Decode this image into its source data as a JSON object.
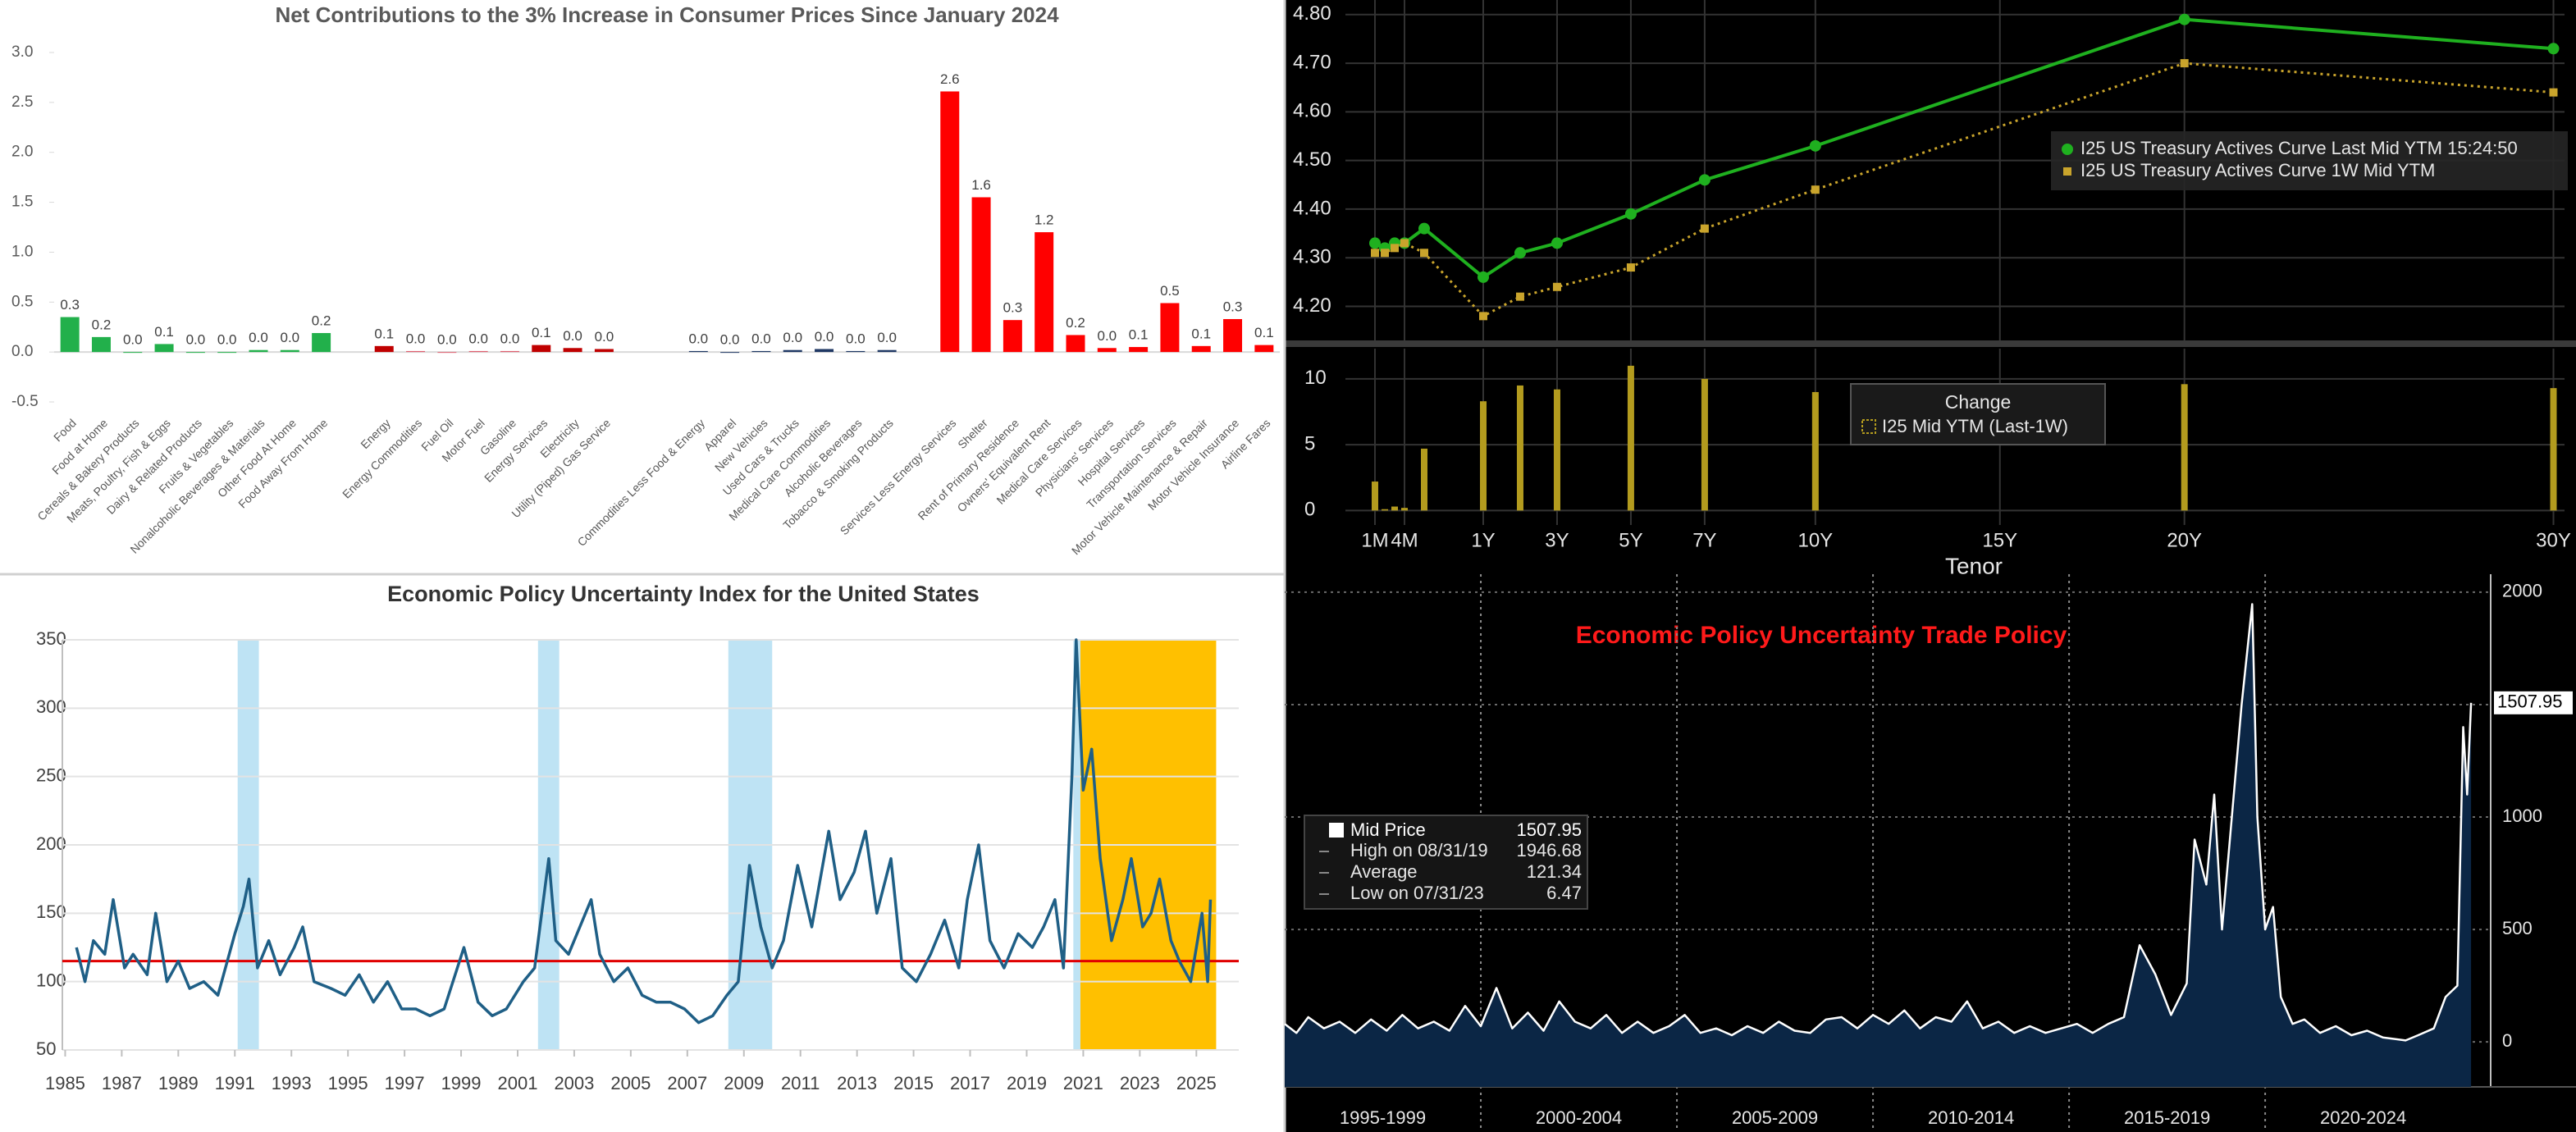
{
  "chart_data": [
    {
      "type": "bar",
      "title": "Net Contributions to the 3% Increase in Consumer Prices Since January 2024",
      "categories": [
        "Food",
        "Food at Home",
        "Cereals & Bakery Products",
        "Meats, Poultry, Fish & Eggs",
        "Dairy & Related Products",
        "Fruits & Vegetables",
        "Nonalcoholic Beverages & Materials",
        "Other Food At Home",
        "Food Away From Home",
        null,
        "Energy",
        "Energy Commodities",
        "Fuel Oil",
        "Motor Fuel",
        "Gasoline",
        "Energy Services",
        "Electricity",
        "Utility (Piped) Gas Service",
        null,
        null,
        "Commodities Less Food & Energy",
        "Apparel",
        "New Vehicles",
        "Used Cars & Trucks",
        "Medical Care Commodities",
        "Alcoholic Beverages",
        "Tobacco & Smoking Products",
        null,
        "Services Less Energy Services",
        "Shelter",
        "Rent of Primary Residence",
        "Owners' Equivalent Rent",
        "Medical Care Services",
        "Physicians' Services",
        "Hospital Services",
        "Transportation Services",
        "Motor Vehicle Maintenance & Repair",
        "Motor Vehicle Insurance",
        "Airline Fares"
      ],
      "values": [
        0.35,
        0.15,
        0.0,
        0.08,
        0.0,
        0.0,
        0.02,
        0.02,
        0.19,
        null,
        0.06,
        0.01,
        0.0,
        0.01,
        0.01,
        0.07,
        0.04,
        0.03,
        null,
        null,
        0.01,
        0.0,
        0.01,
        0.02,
        0.03,
        0.01,
        0.02,
        null,
        2.61,
        1.55,
        0.32,
        1.2,
        0.17,
        0.04,
        0.05,
        0.49,
        0.06,
        0.33,
        0.07
      ],
      "value_labels": [
        "0.3",
        "0.2",
        "0.0",
        "0.1",
        "0.0",
        "0.0",
        "0.0",
        "0.0",
        "0.2",
        null,
        "0.1",
        "0.0",
        "0.0",
        "0.0",
        "0.0",
        "0.1",
        "0.0",
        "0.0",
        null,
        null,
        "0.0",
        "0.0",
        "0.0",
        "0.0",
        "0.0",
        "0.0",
        "0.0",
        null,
        "2.6",
        "1.6",
        "0.3",
        "1.2",
        "0.2",
        "0.0",
        "0.1",
        "0.5",
        "0.1",
        "0.3",
        "0.1"
      ],
      "colors": [
        "#22b04b",
        "#22b04b",
        "#22b04b",
        "#22b04b",
        "#22b04b",
        "#22b04b",
        "#22b04b",
        "#22b04b",
        "#22b04b",
        null,
        "#c00000",
        "#e06070",
        "#e06070",
        "#e06070",
        "#e06070",
        "#c00000",
        "#c00000",
        "#c00000",
        null,
        null,
        "#1f3864",
        "#1f3864",
        "#1f3864",
        "#1f3864",
        "#1f3864",
        "#1f3864",
        "#1f3864",
        null,
        "#ff0000",
        "#ff0000",
        "#ff0000",
        "#ff0000",
        "#ff0000",
        "#ff0000",
        "#ff0000",
        "#ff0000",
        "#ff0000",
        "#ff0000",
        "#ff0000"
      ],
      "ylim": [
        -0.5,
        3.0
      ],
      "yticks": [
        -0.5,
        {
          "value": 0,
          "label": "0.0"
        },
        0.5,
        {
          "value": 1,
          "label": "1.0"
        },
        1.5,
        {
          "value": 2,
          "label": "2.0"
        },
        2.5,
        {
          "value": 3,
          "label": "3.0"
        }
      ]
    },
    {
      "type": "line",
      "x": [
        0.0833,
        0.1667,
        0.25,
        0.3333,
        0.5,
        1,
        2,
        3,
        5,
        7,
        10,
        20,
        30
      ],
      "series": [
        {
          "name": "I25 US Treasury Actives Curve Last Mid YTM 15:24:50",
          "color": "#1fb01f",
          "line_style": "solid",
          "marker": "circle",
          "values": [
            4.33,
            4.32,
            4.33,
            4.33,
            4.36,
            4.26,
            4.31,
            4.33,
            4.39,
            4.46,
            4.53,
            4.79,
            4.73
          ]
        },
        {
          "name": "I25 US Treasury Actives Curve 1W Mid YTM",
          "color": "#c9a42c",
          "line_style": "dotted",
          "marker": "square",
          "values": [
            4.31,
            4.31,
            4.32,
            4.33,
            4.31,
            4.18,
            4.22,
            4.24,
            4.28,
            4.36,
            4.44,
            4.7,
            4.64
          ]
        }
      ],
      "xlim": [
        0,
        30.3
      ],
      "ylim": [
        4.13,
        4.83
      ],
      "yticks": [
        {
          "value": 4.2,
          "label": "4.20"
        },
        {
          "value": 4.3,
          "label": "4.30"
        },
        {
          "value": 4.4,
          "label": "4.40"
        },
        {
          "value": 4.5,
          "label": "4.50"
        },
        {
          "value": 4.6,
          "label": "4.60"
        },
        {
          "value": 4.7,
          "label": "4.70"
        },
        {
          "value": 4.8,
          "label": "4.80"
        }
      ],
      "grid": true
    },
    {
      "type": "bar",
      "legend_title": "Change",
      "x": [
        0.0833,
        0.1667,
        0.25,
        0.3333,
        0.5,
        1,
        2,
        3,
        5,
        7,
        10,
        20,
        30
      ],
      "series": [
        {
          "name": "I25 Mid YTM (Last-1W)",
          "color": "#b39b1e",
          "values": [
            2.2,
            0.1,
            0.3,
            0.2,
            4.7,
            8.3,
            9.5,
            9.2,
            11,
            10,
            9,
            9.6,
            9.3
          ]
        }
      ],
      "xlim": [
        0,
        30.3
      ],
      "xticks": [
        {
          "value": 0.0833,
          "label": "1M"
        },
        {
          "value": 0.3333,
          "label": "4M"
        },
        {
          "value": 1,
          "label": "1Y"
        },
        {
          "value": 3,
          "label": "3Y"
        },
        {
          "value": 5,
          "label": "5Y"
        },
        {
          "value": 7,
          "label": "7Y"
        },
        {
          "value": 10,
          "label": "10Y"
        },
        {
          "value": 15,
          "label": "15Y"
        },
        {
          "value": 20,
          "label": "20Y"
        },
        {
          "value": 30,
          "label": "30Y"
        }
      ],
      "xlabel": "Tenor",
      "ylim": [
        -1.1,
        12.3
      ],
      "yticks": [
        0,
        5,
        10
      ],
      "grid": true
    },
    {
      "type": "line",
      "title": "Economic Policy Uncertainty Index for the United States",
      "x": [
        1985.4,
        1985.7,
        1986.0,
        1986.4,
        1986.7,
        1987.1,
        1987.4,
        1987.9,
        1988.2,
        1988.6,
        1989.0,
        1989.4,
        1989.9,
        1990.4,
        1991.0,
        1991.3,
        1991.5,
        1991.8,
        1992.2,
        1992.6,
        1993.1,
        1993.4,
        1993.8,
        1994.4,
        1994.9,
        1995.4,
        1995.9,
        1996.4,
        1996.9,
        1997.4,
        1997.9,
        1998.4,
        1999.1,
        1999.6,
        2000.1,
        2000.6,
        2001.2,
        2001.6,
        2002.1,
        2002.35,
        2002.8,
        2003.2,
        2003.6,
        2003.9,
        2004.4,
        2004.9,
        2005.4,
        2005.9,
        2006.4,
        2006.9,
        2007.4,
        2007.9,
        2008.4,
        2008.8,
        2009.2,
        2009.6,
        2010.0,
        2010.4,
        2010.9,
        2011.4,
        2012.0,
        2012.4,
        2012.9,
        2013.3,
        2013.7,
        2014.2,
        2014.6,
        2015.1,
        2015.6,
        2016.1,
        2016.6,
        2016.9,
        2017.3,
        2017.7,
        2018.2,
        2018.7,
        2019.2,
        2019.6,
        2020.0,
        2020.3,
        2020.6,
        2020.75,
        2021.0,
        2021.3,
        2021.6,
        2022.0,
        2022.4,
        2022.7,
        2023.1,
        2023.4,
        2023.7,
        2024.1,
        2024.4,
        2024.8,
        2025.2,
        2025.4,
        2025.5
      ],
      "series": [
        {
          "color": "#1f5f86",
          "values": [
            125,
            100,
            130,
            120,
            160,
            110,
            120,
            105,
            150,
            100,
            115,
            95,
            100,
            90,
            135,
            155,
            175,
            110,
            130,
            105,
            125,
            140,
            100,
            95,
            90,
            105,
            85,
            100,
            80,
            80,
            75,
            80,
            125,
            85,
            75,
            80,
            100,
            110,
            190,
            130,
            120,
            140,
            160,
            120,
            100,
            110,
            90,
            85,
            85,
            80,
            70,
            75,
            90,
            100,
            185,
            140,
            110,
            130,
            185,
            140,
            210,
            160,
            180,
            210,
            150,
            190,
            110,
            100,
            120,
            145,
            110,
            160,
            200,
            130,
            110,
            135,
            125,
            140,
            160,
            110,
            250,
            350,
            240,
            270,
            190,
            130,
            160,
            190,
            140,
            150,
            175,
            130,
            115,
            100,
            150,
            100,
            160
          ]
        }
      ],
      "xlim": [
        1984.9,
        2026.5
      ],
      "ylim": [
        50,
        350
      ],
      "xticks": [
        1985,
        1987,
        1989,
        1991,
        1993,
        1995,
        1997,
        1999,
        2001,
        2003,
        2005,
        2007,
        2009,
        2011,
        2013,
        2015,
        2017,
        2019,
        2021,
        2023,
        2025
      ],
      "yticks": [
        50,
        100,
        150,
        200,
        250,
        300,
        350
      ],
      "grid": true,
      "shaded_ranges": [
        {
          "start": 1991.1,
          "end": 1991.85,
          "color": "#bee3f4"
        },
        {
          "start": 2001.72,
          "end": 2002.47,
          "color": "#bee3f4"
        },
        {
          "start": 2008.45,
          "end": 2010.0,
          "color": "#bee3f4"
        },
        {
          "start": 2020.65,
          "end": 2020.9,
          "color": "#bee3f4"
        },
        {
          "start": 2020.9,
          "end": 2025.7,
          "color": "#ffc000"
        }
      ],
      "reference_line": {
        "value": 115,
        "color": "#e00000"
      }
    },
    {
      "type": "area",
      "title": "Economic Policy Uncertainty Trade Policy",
      "x": [
        1995.0,
        1995.3,
        1995.6,
        1996.0,
        1996.4,
        1996.8,
        1997.2,
        1997.6,
        1998.0,
        1998.4,
        1998.8,
        1999.2,
        1999.6,
        2000.0,
        2000.4,
        2000.8,
        2001.2,
        2001.6,
        2002.0,
        2002.4,
        2002.8,
        2003.2,
        2003.6,
        2004.0,
        2004.4,
        2004.8,
        2005.2,
        2005.6,
        2006.0,
        2006.4,
        2006.8,
        2007.2,
        2007.6,
        2008.0,
        2008.4,
        2008.8,
        2009.2,
        2009.6,
        2010.0,
        2010.4,
        2010.8,
        2011.2,
        2011.6,
        2012.0,
        2012.4,
        2012.8,
        2013.2,
        2013.6,
        2014.0,
        2014.4,
        2014.8,
        2015.2,
        2015.6,
        2016.0,
        2016.4,
        2016.8,
        2017.2,
        2017.6,
        2018.0,
        2018.2,
        2018.5,
        2018.7,
        2018.9,
        2019.1,
        2019.4,
        2019.67,
        2019.8,
        2020.0,
        2020.2,
        2020.4,
        2020.7,
        2021.0,
        2021.4,
        2021.8,
        2022.2,
        2022.6,
        2023.0,
        2023.58,
        2023.9,
        2024.3,
        2024.6,
        2024.9,
        2025.05,
        2025.15,
        2025.25
      ],
      "series": [
        {
          "name": "Mid Price",
          "color": "#ffffff",
          "fill": "#0b2645",
          "values": [
            80,
            40,
            110,
            60,
            90,
            40,
            100,
            50,
            120,
            60,
            90,
            50,
            160,
            70,
            240,
            60,
            130,
            50,
            180,
            90,
            60,
            120,
            40,
            90,
            40,
            70,
            120,
            40,
            60,
            30,
            70,
            40,
            90,
            50,
            40,
            100,
            110,
            60,
            120,
            80,
            140,
            60,
            110,
            90,
            180,
            60,
            90,
            40,
            70,
            40,
            60,
            80,
            40,
            80,
            110,
            430,
            300,
            120,
            260,
            900,
            700,
            1100,
            500,
            900,
            1500,
            1946.68,
            1000,
            500,
            600,
            200,
            80,
            100,
            40,
            70,
            30,
            50,
            20,
            6.47,
            30,
            60,
            200,
            250,
            1400,
            1100,
            1507.95
          ]
        }
      ],
      "xlim": [
        1995,
        2025.75
      ],
      "ylim": [
        -200,
        2080
      ],
      "yticks": [
        0,
        500,
        1000,
        1500,
        2000
      ],
      "periods": [
        {
          "start": 1995,
          "end": 2000,
          "label": "1995-1999"
        },
        {
          "start": 2000,
          "end": 2005,
          "label": "2000-2004"
        },
        {
          "start": 2005,
          "end": 2010,
          "label": "2005-2009"
        },
        {
          "start": 2010,
          "end": 2015,
          "label": "2010-2014"
        },
        {
          "start": 2015,
          "end": 2020,
          "label": "2015-2019"
        },
        {
          "start": 2020,
          "end": 2025,
          "label": "2020-2024"
        }
      ],
      "stats": [
        {
          "label": "High on 08/31/19",
          "value": 1946.68
        },
        {
          "label": "Average",
          "value": 121.34
        },
        {
          "label": "Low on 07/31/23",
          "value": 6.47
        }
      ],
      "grid": true
    }
  ]
}
